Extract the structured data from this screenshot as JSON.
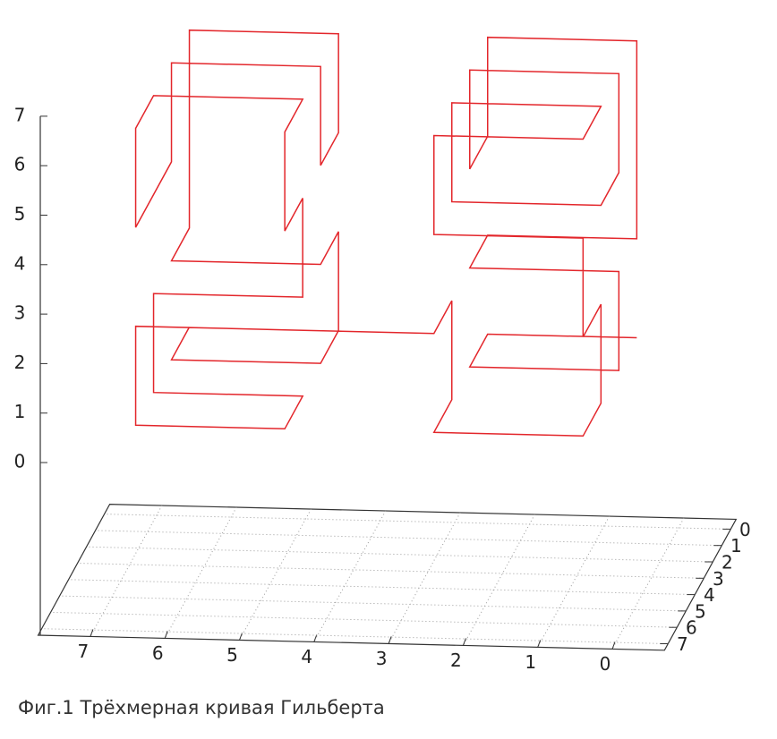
{
  "chart_data": {
    "type": "line3d",
    "title": "Фиг.1 Трёхмерная кривая Гильберта",
    "grid": true,
    "xlim": [
      0,
      7
    ],
    "xticks": [
      0,
      1,
      2,
      3,
      4,
      5,
      6,
      7
    ],
    "ylim": [
      0,
      7
    ],
    "yticks": [
      0,
      1,
      2,
      3,
      4,
      5,
      6,
      7
    ],
    "zlim": [
      0,
      7
    ],
    "zticks": [
      0,
      1,
      2,
      3,
      4,
      5,
      6,
      7
    ],
    "series": [
      {
        "color": "#e3262b",
        "x": [
          0.5,
          2.5,
          2.5,
          0.5,
          0.5,
          2.5,
          2.5,
          0.5,
          0.5,
          0.5,
          2.5,
          2.5,
          2.5,
          2.5,
          0.5,
          0.5,
          0.5,
          2.5,
          2.5,
          0.5,
          0.5,
          2.5,
          2.5,
          0.5,
          0.5,
          0.5,
          0.5,
          0.5,
          2.5,
          2.5,
          2.5,
          2.5,
          4.5,
          6.5,
          6.5,
          4.5,
          4.5,
          6.5,
          6.5,
          4.5,
          4.5,
          4.5,
          4.5,
          4.5,
          6.5,
          6.5,
          6.5,
          6.5,
          6.5,
          6.5,
          4.5,
          4.5,
          4.5,
          4.5,
          6.5,
          6.5,
          6.5,
          6.5,
          4.5,
          4.5,
          4.5,
          4.5,
          6.5,
          6.5
        ],
        "y": [
          0.5,
          0.5,
          2.5,
          2.5,
          2.5,
          2.5,
          0.5,
          0.5,
          0.5,
          0.5,
          0.5,
          0.5,
          2.5,
          2.5,
          2.5,
          2.5,
          4.5,
          4.5,
          4.5,
          4.5,
          6.5,
          6.5,
          6.5,
          6.5,
          6.5,
          4.5,
          4.5,
          6.5,
          6.5,
          4.5,
          4.5,
          6.5,
          6.5,
          6.5,
          6.5,
          6.5,
          4.5,
          4.5,
          4.5,
          4.5,
          4.5,
          6.5,
          6.5,
          4.5,
          4.5,
          6.5,
          6.5,
          4.5,
          2.5,
          2.5,
          2.5,
          2.5,
          0.5,
          0.5,
          0.5,
          0.5,
          0.5,
          2.5,
          2.5,
          0.5,
          0.5,
          2.5,
          2.5,
          0.5
        ],
        "z": [
          0.5,
          0.5,
          0.5,
          0.5,
          2.5,
          2.5,
          2.5,
          2.5,
          4.5,
          6.5,
          6.5,
          4.5,
          4.5,
          6.5,
          6.5,
          4.5,
          4.5,
          4.5,
          6.5,
          6.5,
          6.5,
          6.5,
          4.5,
          4.5,
          2.5,
          2.5,
          0.5,
          0.5,
          0.5,
          0.5,
          2.5,
          2.5,
          2.5,
          2.5,
          0.5,
          0.5,
          0.5,
          0.5,
          2.5,
          2.5,
          4.5,
          4.5,
          6.5,
          6.5,
          6.5,
          6.5,
          4.5,
          4.5,
          4.5,
          6.5,
          6.5,
          4.5,
          4.5,
          6.5,
          6.5,
          4.5,
          2.5,
          2.5,
          2.5,
          2.5,
          0.5,
          0.5,
          0.5,
          0.5
        ]
      }
    ]
  }
}
